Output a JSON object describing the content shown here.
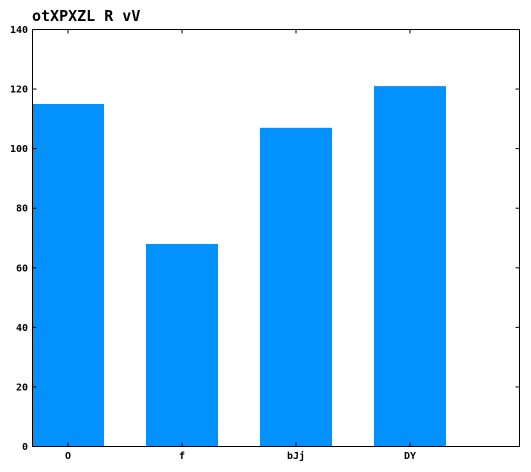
{
  "chart_data": {
    "type": "bar",
    "title": "otXPXZL R vV",
    "xlabel": "",
    "ylabel": "",
    "categories": [
      "O",
      "f",
      "bJj",
      "DY"
    ],
    "values": [
      115,
      68,
      107,
      121
    ],
    "ylim": [
      0,
      140
    ],
    "yticks": [
      0,
      20,
      40,
      60,
      80,
      100,
      120,
      140
    ],
    "grid": false,
    "legend": "none",
    "bar_color": "#0391fe"
  }
}
